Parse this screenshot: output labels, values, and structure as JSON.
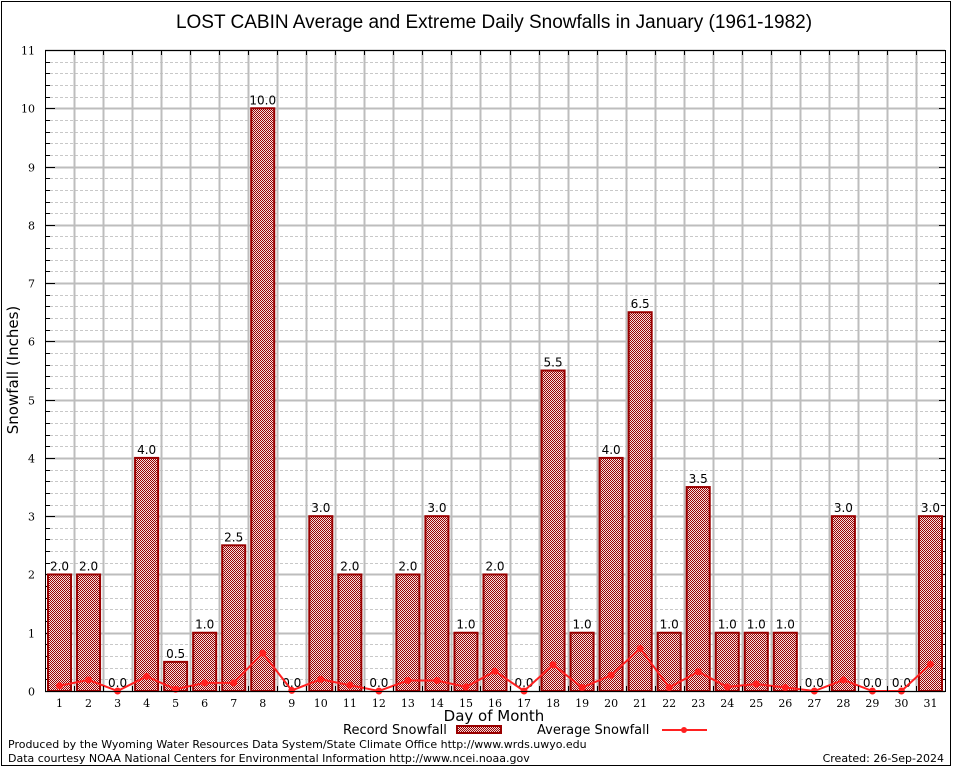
{
  "chart_data": {
    "type": "bar",
    "title": "LOST CABIN Average and Extreme Daily Snowfalls in January (1961-1982)",
    "xlabel": "Day of Month",
    "ylabel": "Snowfall (Inches)",
    "ylim": [
      0,
      11
    ],
    "yticks": [
      0,
      1,
      2,
      3,
      4,
      5,
      6,
      7,
      8,
      9,
      10,
      11
    ],
    "grid": true,
    "categories": [
      "1",
      "2",
      "3",
      "4",
      "5",
      "6",
      "7",
      "8",
      "9",
      "10",
      "11",
      "12",
      "13",
      "14",
      "15",
      "16",
      "17",
      "18",
      "19",
      "20",
      "21",
      "22",
      "23",
      "24",
      "25",
      "26",
      "27",
      "28",
      "29",
      "30",
      "31"
    ],
    "series": [
      {
        "name": "Record Snowfall",
        "type": "bar",
        "color": "#990000",
        "values": [
          2.0,
          2.0,
          0.0,
          4.0,
          0.5,
          1.0,
          2.5,
          10.0,
          0.0,
          3.0,
          2.0,
          0.0,
          2.0,
          3.0,
          1.0,
          2.0,
          0.0,
          5.5,
          1.0,
          4.0,
          6.5,
          1.0,
          3.5,
          1.0,
          1.0,
          1.0,
          0.0,
          3.0,
          0.0,
          0.0,
          3.0
        ],
        "labels": [
          "2.0",
          "2.0",
          "0.0",
          "4.0",
          "0.5",
          "1.0",
          "2.5",
          "10.0",
          "0.0",
          "3.0",
          "2.0",
          "0.0",
          "2.0",
          "3.0",
          "1.0",
          "2.0",
          "0.0",
          "5.5",
          "1.0",
          "4.0",
          "6.5",
          "1.0",
          "3.5",
          "1.0",
          "1.0",
          "1.0",
          "0.0",
          "3.0",
          "0.0",
          "0.0",
          "3.0"
        ]
      },
      {
        "name": "Average Snowfall",
        "type": "line",
        "color": "#ff2020",
        "values": [
          0.09,
          0.19,
          0.0,
          0.25,
          0.03,
          0.14,
          0.14,
          0.65,
          0.01,
          0.2,
          0.1,
          0.0,
          0.18,
          0.18,
          0.07,
          0.34,
          0.0,
          0.45,
          0.06,
          0.27,
          0.73,
          0.06,
          0.33,
          0.07,
          0.12,
          0.06,
          0.0,
          0.19,
          0.0,
          0.0,
          0.46
        ]
      }
    ],
    "legend": {
      "position": "bottom-center",
      "entries": [
        "Record Snowfall",
        "Average Snowfall"
      ]
    }
  },
  "footer": {
    "produced_by": "Produced by the Wyoming Water Resources Data System/State Climate Office http://www.wrds.uwyo.edu",
    "data_courtesy": "Data courtesy NOAA National Centers for Environmental Information http://www.ncei.noaa.gov",
    "created": "Created:  26-Sep-2024"
  }
}
